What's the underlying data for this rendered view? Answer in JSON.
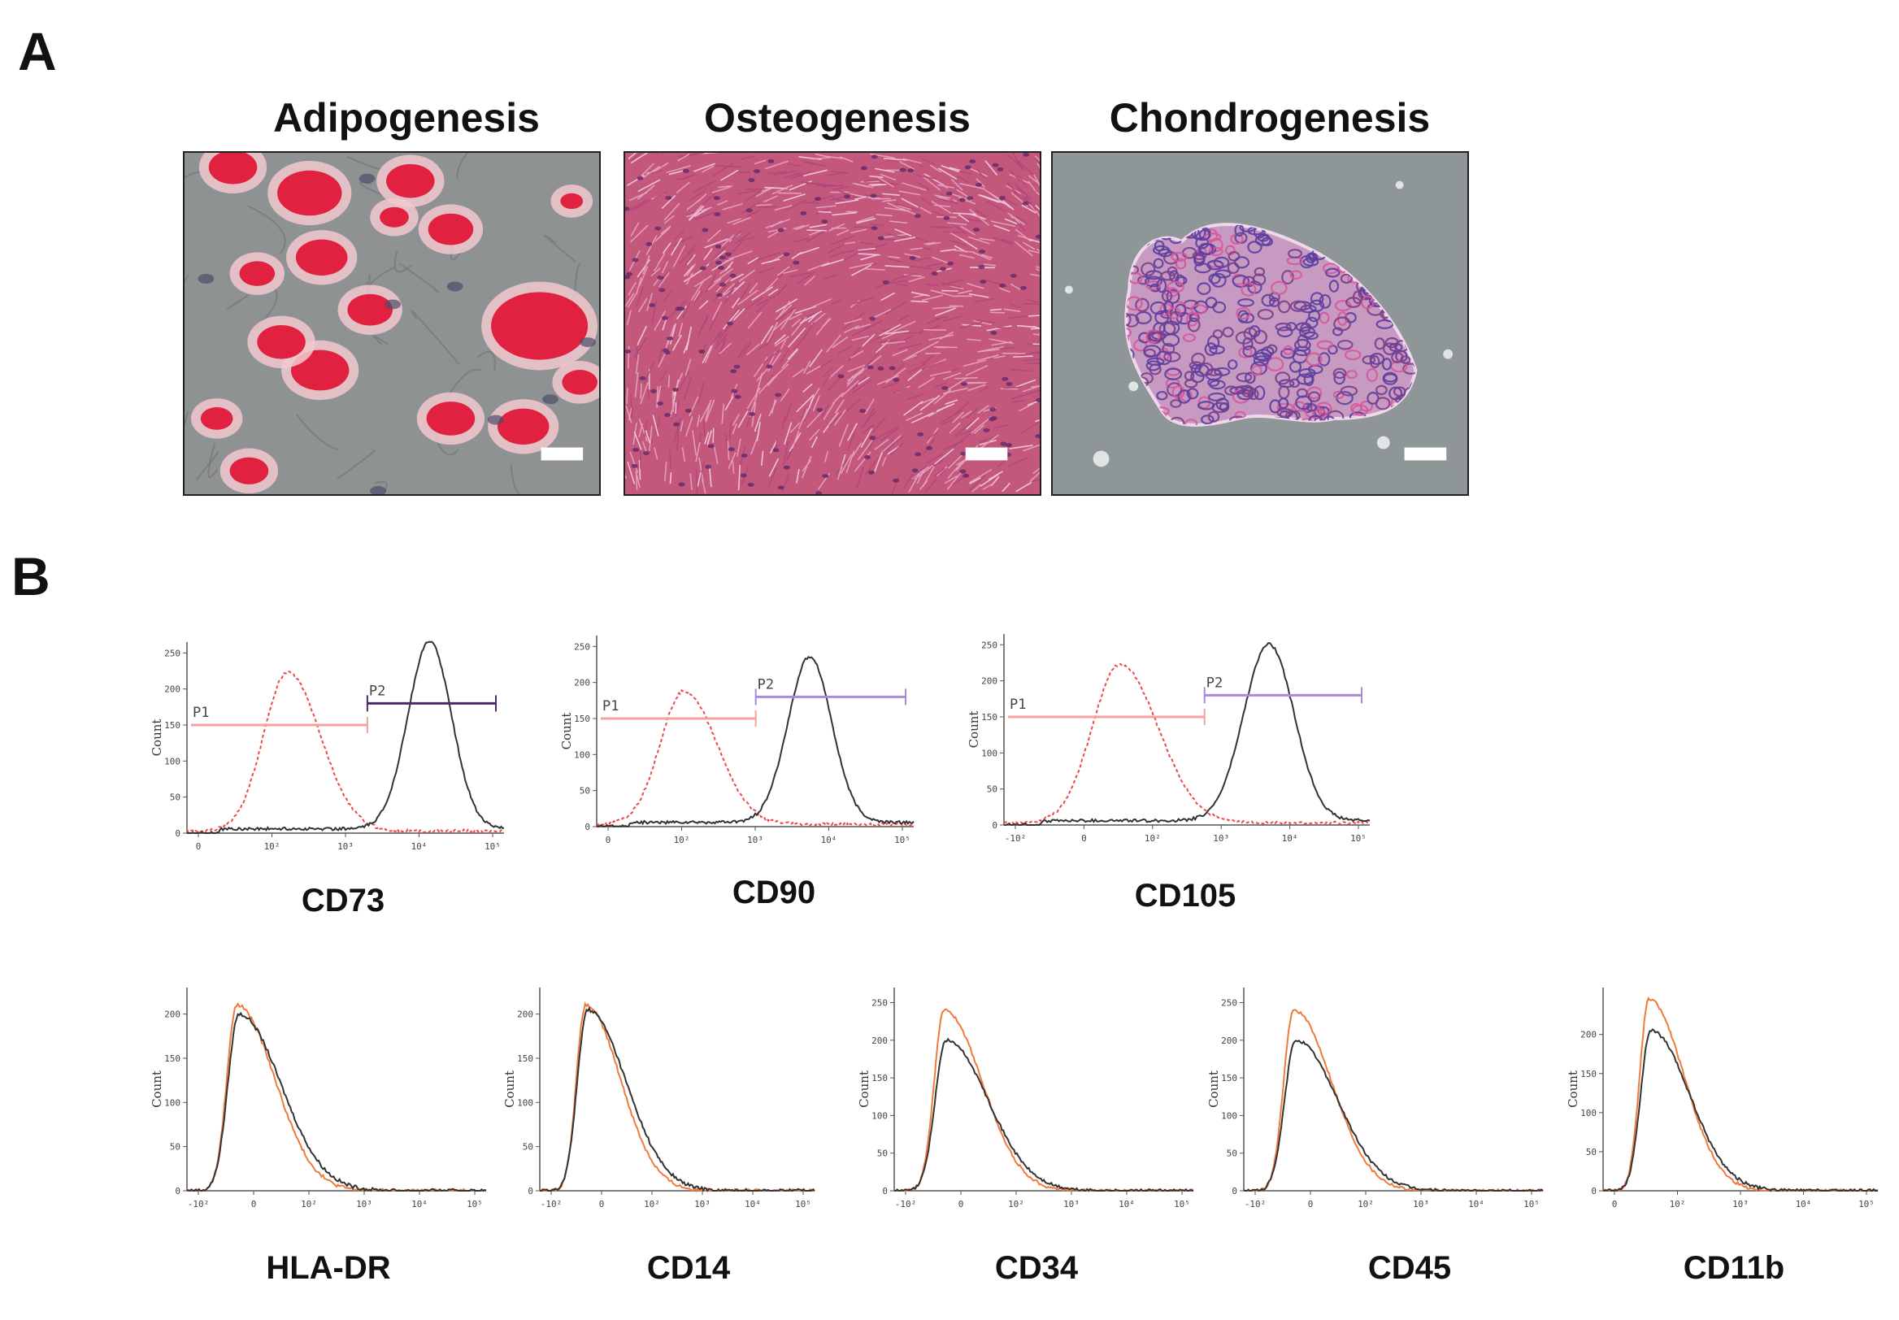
{
  "panels": {
    "a_label": "A",
    "b_label": "B"
  },
  "micrographs": [
    {
      "title": "Adipogenesis",
      "bg": "#8f9292",
      "stain": "#e0213f"
    },
    {
      "title": "Osteogenesis",
      "bg": "#c4587c",
      "stain": "#6a2a6a"
    },
    {
      "title": "Chondrogenesis",
      "bg": "#8f9697",
      "stain": "#7a3f8a"
    }
  ],
  "colors": {
    "isotype": "#f04848",
    "sample": "#333333",
    "gate_p1": "#f5a0a0",
    "gate_p2_dark": "#4a2a6a",
    "gate_p2_light": "#a78ad8",
    "overlay_orange": "#f07a3c"
  },
  "positive_markers": [
    {
      "marker": "CD73",
      "ylabel": "Count",
      "yticks": [
        "0",
        "50",
        "100",
        "150",
        "200",
        "250"
      ],
      "xticks": [
        "0",
        "10²",
        "10³",
        "10⁴",
        "10⁵"
      ],
      "gates": [
        {
          "name": "P1"
        },
        {
          "name": "P2"
        }
      ],
      "isotype_peak_x": 0.42,
      "isotype_peak_y": 220,
      "sample_peak_x": 1.72,
      "sample_peak_y": 260
    },
    {
      "marker": "CD90",
      "ylabel": "Count",
      "yticks": [
        "0",
        "50",
        "100",
        "150",
        "200",
        "250"
      ],
      "xticks": [
        "0",
        "10²",
        "10³",
        "10⁴",
        "10⁵"
      ],
      "gates": [
        {
          "name": "P1"
        },
        {
          "name": "P2"
        }
      ],
      "isotype_peak_x": 0.3,
      "isotype_peak_y": 185,
      "sample_peak_x": 1.45,
      "sample_peak_y": 230
    },
    {
      "marker": "CD105",
      "ylabel": "Count",
      "yticks": [
        "0",
        "50",
        "100",
        "150",
        "200",
        "250"
      ],
      "xticks": [
        "-10²",
        "0",
        "10²",
        "10³",
        "10⁴",
        "10⁵"
      ],
      "gates": [
        {
          "name": "P1"
        },
        {
          "name": "P2"
        }
      ],
      "isotype_peak_x": 0.42,
      "isotype_peak_y": 220,
      "sample_peak_x": 1.6,
      "sample_peak_y": 245
    }
  ],
  "negative_markers": [
    {
      "marker": "HLA-DR",
      "ylabel": "Count",
      "yticks": [
        "0",
        "50",
        "100",
        "150",
        "200"
      ],
      "xticks": [
        "-10²",
        "0",
        "10²",
        "10³",
        "10⁴",
        "10⁵"
      ],
      "ymax": 230,
      "sample_peak_y": 200,
      "isotype_peak_y": 210
    },
    {
      "marker": "CD14",
      "ylabel": "Count",
      "yticks": [
        "0",
        "50",
        "100",
        "150",
        "200"
      ],
      "xticks": [
        "-10²",
        "0",
        "10²",
        "10³",
        "10⁴",
        "10⁵"
      ],
      "ymax": 230,
      "sample_peak_y": 205,
      "isotype_peak_y": 210
    },
    {
      "marker": "CD34",
      "ylabel": "Count",
      "yticks": [
        "0",
        "50",
        "100",
        "150",
        "200",
        "250"
      ],
      "xticks": [
        "-10²",
        "0",
        "10²",
        "10³",
        "10⁴",
        "10⁵"
      ],
      "ymax": 270,
      "sample_peak_y": 200,
      "isotype_peak_y": 240
    },
    {
      "marker": "CD45",
      "ylabel": "Count",
      "yticks": [
        "0",
        "50",
        "100",
        "150",
        "200",
        "250"
      ],
      "xticks": [
        "-10²",
        "0",
        "10²",
        "10³",
        "10⁴",
        "10⁵"
      ],
      "ymax": 270,
      "sample_peak_y": 200,
      "isotype_peak_y": 240
    },
    {
      "marker": "CD11b",
      "ylabel": "Count",
      "yticks": [
        "0",
        "50",
        "100",
        "150",
        "200"
      ],
      "xticks": [
        "0",
        "10²",
        "10³",
        "10⁴",
        "10⁵"
      ],
      "ymax": 260,
      "sample_peak_y": 205,
      "isotype_peak_y": 245
    }
  ]
}
